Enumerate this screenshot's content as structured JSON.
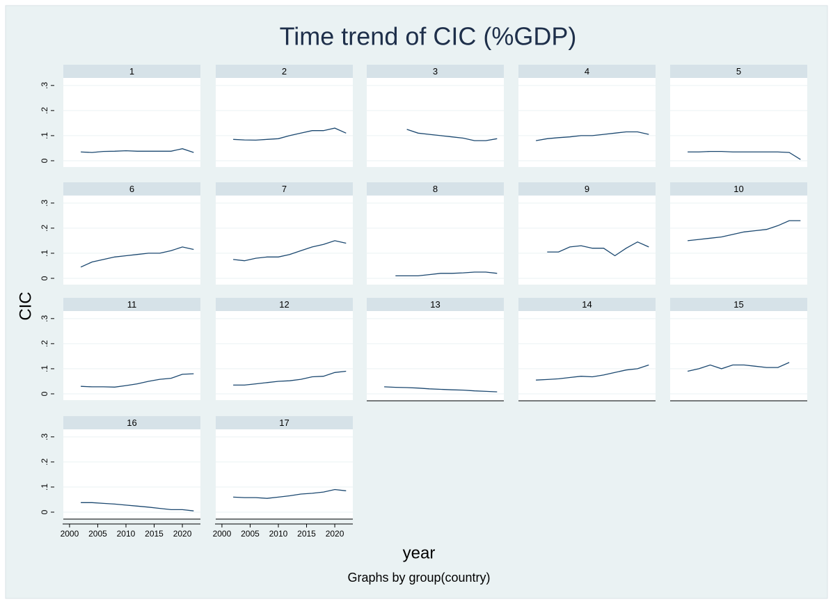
{
  "title": "Time trend of CIC (%GDP)",
  "ytitle": "CIC",
  "xtitle": "year",
  "note": "Graphs by group(country)",
  "chart_data": [
    {
      "type": "line",
      "title": "1",
      "color": "#1a476f",
      "x": [
        2002,
        2004,
        2006,
        2008,
        2010,
        2012,
        2014,
        2016,
        2018,
        2020,
        2022
      ],
      "values": [
        0.035,
        0.033,
        0.037,
        0.038,
        0.04,
        0.038,
        0.038,
        0.038,
        0.038,
        0.048,
        0.033
      ],
      "xlim": [
        1998.9,
        2023.2
      ],
      "ylim": [
        -0.025,
        0.33
      ],
      "xticks": [
        2000,
        2005,
        2010,
        2015,
        2020
      ],
      "yticks": [
        0,
        {
          "value": 0.1,
          "label": ".1"
        },
        {
          "value": 0.2,
          "label": ".2"
        },
        {
          "value": 0.3,
          "label": ".3"
        }
      ],
      "grid": true
    },
    {
      "type": "line",
      "title": "2",
      "color": "#1a476f",
      "x": [
        2002,
        2004,
        2006,
        2008,
        2010,
        2012,
        2014,
        2016,
        2018,
        2020,
        2022
      ],
      "values": [
        0.085,
        0.083,
        0.082,
        0.085,
        0.088,
        0.1,
        0.11,
        0.12,
        0.12,
        0.13,
        0.11
      ],
      "xlim": [
        1998.9,
        2023.2
      ],
      "ylim": [
        -0.025,
        0.33
      ],
      "xticks": [
        2000,
        2005,
        2010,
        2015,
        2020
      ],
      "yticks": [
        0,
        {
          "value": 0.1,
          "label": ".1"
        },
        {
          "value": 0.2,
          "label": ".2"
        },
        {
          "value": 0.3,
          "label": ".3"
        }
      ],
      "grid": true
    },
    {
      "type": "line",
      "title": "3",
      "color": "#1a476f",
      "x": [
        2002,
        2004,
        2006,
        2008,
        2010,
        2012,
        2014,
        2016,
        2018,
        2020,
        2022
      ],
      "values": [
        null,
        null,
        0.125,
        0.11,
        0.105,
        0.1,
        0.095,
        0.09,
        0.08,
        0.08,
        0.088
      ],
      "xlim": [
        1998.9,
        2023.2
      ],
      "ylim": [
        -0.025,
        0.33
      ],
      "xticks": [
        2000,
        2005,
        2010,
        2015,
        2020
      ],
      "yticks": [
        0,
        {
          "value": 0.1,
          "label": ".1"
        },
        {
          "value": 0.2,
          "label": ".2"
        },
        {
          "value": 0.3,
          "label": ".3"
        }
      ],
      "grid": true
    },
    {
      "type": "line",
      "title": "4",
      "color": "#1a476f",
      "x": [
        2002,
        2004,
        2006,
        2008,
        2010,
        2012,
        2014,
        2016,
        2018,
        2020,
        2022
      ],
      "values": [
        0.08,
        0.088,
        0.092,
        0.095,
        0.1,
        0.1,
        0.105,
        0.11,
        0.115,
        0.115,
        0.105
      ],
      "xlim": [
        1998.9,
        2023.2
      ],
      "ylim": [
        -0.025,
        0.33
      ],
      "xticks": [
        2000,
        2005,
        2010,
        2015,
        2020
      ],
      "yticks": [
        0,
        {
          "value": 0.1,
          "label": ".1"
        },
        {
          "value": 0.2,
          "label": ".2"
        },
        {
          "value": 0.3,
          "label": ".3"
        }
      ],
      "grid": true
    },
    {
      "type": "line",
      "title": "5",
      "color": "#1a476f",
      "x": [
        2002,
        2004,
        2006,
        2008,
        2010,
        2012,
        2014,
        2016,
        2018,
        2020,
        2022
      ],
      "values": [
        0.035,
        0.035,
        0.037,
        0.037,
        0.035,
        0.035,
        0.035,
        0.035,
        0.035,
        0.033,
        0.005
      ],
      "xlim": [
        1998.9,
        2023.2
      ],
      "ylim": [
        -0.025,
        0.33
      ],
      "xticks": [
        2000,
        2005,
        2010,
        2015,
        2020
      ],
      "yticks": [
        0,
        {
          "value": 0.1,
          "label": ".1"
        },
        {
          "value": 0.2,
          "label": ".2"
        },
        {
          "value": 0.3,
          "label": ".3"
        }
      ],
      "grid": true
    },
    {
      "type": "line",
      "title": "6",
      "color": "#1a476f",
      "x": [
        2002,
        2004,
        2006,
        2008,
        2010,
        2012,
        2014,
        2016,
        2018,
        2020,
        2022
      ],
      "values": [
        0.045,
        0.065,
        0.075,
        0.085,
        0.09,
        0.095,
        0.1,
        0.1,
        0.11,
        0.125,
        0.115
      ],
      "xlim": [
        1998.9,
        2023.2
      ],
      "ylim": [
        -0.025,
        0.33
      ],
      "xticks": [
        2000,
        2005,
        2010,
        2015,
        2020
      ],
      "yticks": [
        0,
        {
          "value": 0.1,
          "label": ".1"
        },
        {
          "value": 0.2,
          "label": ".2"
        },
        {
          "value": 0.3,
          "label": ".3"
        }
      ],
      "grid": true
    },
    {
      "type": "line",
      "title": "7",
      "color": "#1a476f",
      "x": [
        2002,
        2004,
        2006,
        2008,
        2010,
        2012,
        2014,
        2016,
        2018,
        2020,
        2022
      ],
      "values": [
        0.075,
        0.07,
        0.08,
        0.085,
        0.085,
        0.095,
        0.11,
        0.125,
        0.135,
        0.15,
        0.14
      ],
      "xlim": [
        1998.9,
        2023.2
      ],
      "ylim": [
        -0.025,
        0.33
      ],
      "xticks": [
        2000,
        2005,
        2010,
        2015,
        2020
      ],
      "yticks": [
        0,
        {
          "value": 0.1,
          "label": ".1"
        },
        {
          "value": 0.2,
          "label": ".2"
        },
        {
          "value": 0.3,
          "label": ".3"
        }
      ],
      "grid": true
    },
    {
      "type": "line",
      "title": "8",
      "color": "#1a476f",
      "x": [
        2002,
        2004,
        2006,
        2008,
        2010,
        2012,
        2014,
        2016,
        2018,
        2020,
        2022
      ],
      "values": [
        null,
        0.01,
        0.01,
        0.01,
        0.015,
        0.02,
        0.02,
        0.022,
        0.025,
        0.025,
        0.02
      ],
      "xlim": [
        1998.9,
        2023.2
      ],
      "ylim": [
        -0.025,
        0.33
      ],
      "xticks": [
        2000,
        2005,
        2010,
        2015,
        2020
      ],
      "yticks": [
        0,
        {
          "value": 0.1,
          "label": ".1"
        },
        {
          "value": 0.2,
          "label": ".2"
        },
        {
          "value": 0.3,
          "label": ".3"
        }
      ],
      "grid": true
    },
    {
      "type": "line",
      "title": "9",
      "color": "#1a476f",
      "x": [
        2002,
        2004,
        2006,
        2008,
        2010,
        2012,
        2014,
        2016,
        2018,
        2020,
        2022
      ],
      "values": [
        null,
        0.105,
        0.105,
        0.125,
        0.13,
        0.12,
        0.12,
        0.09,
        0.12,
        0.145,
        0.125
      ],
      "xlim": [
        1998.9,
        2023.2
      ],
      "ylim": [
        -0.025,
        0.33
      ],
      "xticks": [
        2000,
        2005,
        2010,
        2015,
        2020
      ],
      "yticks": [
        0,
        {
          "value": 0.1,
          "label": ".1"
        },
        {
          "value": 0.2,
          "label": ".2"
        },
        {
          "value": 0.3,
          "label": ".3"
        }
      ],
      "grid": true
    },
    {
      "type": "line",
      "title": "10",
      "color": "#1a476f",
      "x": [
        2002,
        2004,
        2006,
        2008,
        2010,
        2012,
        2014,
        2016,
        2018,
        2020,
        2022
      ],
      "values": [
        0.15,
        0.155,
        0.16,
        0.165,
        0.175,
        0.185,
        0.19,
        0.195,
        0.21,
        0.23,
        0.23
      ],
      "xlim": [
        1998.9,
        2023.2
      ],
      "ylim": [
        -0.025,
        0.33
      ],
      "xticks": [
        2000,
        2005,
        2010,
        2015,
        2020
      ],
      "yticks": [
        0,
        {
          "value": 0.1,
          "label": ".1"
        },
        {
          "value": 0.2,
          "label": ".2"
        },
        {
          "value": 0.3,
          "label": ".3"
        }
      ],
      "grid": true
    },
    {
      "type": "line",
      "title": "11",
      "color": "#1a476f",
      "x": [
        2002,
        2004,
        2006,
        2008,
        2010,
        2012,
        2014,
        2016,
        2018,
        2020,
        2022
      ],
      "values": [
        0.03,
        0.028,
        0.028,
        0.027,
        0.033,
        0.04,
        0.05,
        0.058,
        0.062,
        0.078,
        0.08
      ],
      "xlim": [
        1998.9,
        2023.2
      ],
      "ylim": [
        -0.025,
        0.33
      ],
      "xticks": [
        2000,
        2005,
        2010,
        2015,
        2020
      ],
      "yticks": [
        0,
        {
          "value": 0.1,
          "label": ".1"
        },
        {
          "value": 0.2,
          "label": ".2"
        },
        {
          "value": 0.3,
          "label": ".3"
        }
      ],
      "grid": true
    },
    {
      "type": "line",
      "title": "12",
      "color": "#1a476f",
      "x": [
        2002,
        2004,
        2006,
        2008,
        2010,
        2012,
        2014,
        2016,
        2018,
        2020,
        2022
      ],
      "values": [
        0.035,
        0.035,
        0.04,
        0.045,
        0.05,
        0.052,
        0.058,
        0.068,
        0.07,
        0.085,
        0.09
      ],
      "xlim": [
        1998.9,
        2023.2
      ],
      "ylim": [
        -0.025,
        0.33
      ],
      "xticks": [
        2000,
        2005,
        2010,
        2015,
        2020
      ],
      "yticks": [
        0,
        {
          "value": 0.1,
          "label": ".1"
        },
        {
          "value": 0.2,
          "label": ".2"
        },
        {
          "value": 0.3,
          "label": ".3"
        }
      ],
      "grid": true
    },
    {
      "type": "line",
      "title": "13",
      "color": "#1a476f",
      "x": [
        2002,
        2004,
        2006,
        2008,
        2010,
        2012,
        2014,
        2016,
        2018,
        2020,
        2022
      ],
      "values": [
        0.028,
        0.026,
        0.025,
        0.023,
        0.02,
        0.018,
        0.016,
        0.015,
        0.012,
        0.01,
        0.008
      ],
      "xlim": [
        1998.9,
        2023.2
      ],
      "ylim": [
        -0.025,
        0.33
      ],
      "xticks": [
        2000,
        2005,
        2010,
        2015,
        2020
      ],
      "yticks": [
        0,
        {
          "value": 0.1,
          "label": ".1"
        },
        {
          "value": 0.2,
          "label": ".2"
        },
        {
          "value": 0.3,
          "label": ".3"
        }
      ],
      "grid": true
    },
    {
      "type": "line",
      "title": "14",
      "color": "#1a476f",
      "x": [
        2002,
        2004,
        2006,
        2008,
        2010,
        2012,
        2014,
        2016,
        2018,
        2020,
        2022
      ],
      "values": [
        0.055,
        0.057,
        0.06,
        0.065,
        0.07,
        0.068,
        0.075,
        0.085,
        0.095,
        0.1,
        0.115
      ],
      "xlim": [
        1998.9,
        2023.2
      ],
      "ylim": [
        -0.025,
        0.33
      ],
      "xticks": [
        2000,
        2005,
        2010,
        2015,
        2020
      ],
      "yticks": [
        0,
        {
          "value": 0.1,
          "label": ".1"
        },
        {
          "value": 0.2,
          "label": ".2"
        },
        {
          "value": 0.3,
          "label": ".3"
        }
      ],
      "grid": true
    },
    {
      "type": "line",
      "title": "15",
      "color": "#1a476f",
      "x": [
        2002,
        2004,
        2006,
        2008,
        2010,
        2012,
        2014,
        2016,
        2018,
        2020,
        2022
      ],
      "values": [
        0.09,
        0.1,
        0.115,
        0.1,
        0.115,
        0.115,
        0.11,
        0.105,
        0.105,
        0.125,
        null
      ],
      "xlim": [
        1998.9,
        2023.2
      ],
      "ylim": [
        -0.025,
        0.33
      ],
      "xticks": [
        2000,
        2005,
        2010,
        2015,
        2020
      ],
      "yticks": [
        0,
        {
          "value": 0.1,
          "label": ".1"
        },
        {
          "value": 0.2,
          "label": ".2"
        },
        {
          "value": 0.3,
          "label": ".3"
        }
      ],
      "grid": true
    },
    {
      "type": "line",
      "title": "16",
      "color": "#1a476f",
      "x": [
        2002,
        2004,
        2006,
        2008,
        2010,
        2012,
        2014,
        2016,
        2018,
        2020,
        2022
      ],
      "values": [
        0.038,
        0.038,
        0.035,
        0.032,
        0.028,
        0.024,
        0.02,
        0.015,
        0.01,
        0.01,
        0.005
      ],
      "xlim": [
        1998.9,
        2023.2
      ],
      "ylim": [
        -0.025,
        0.33
      ],
      "xticks": [
        2000,
        2005,
        2010,
        2015,
        2020
      ],
      "yticks": [
        0,
        {
          "value": 0.1,
          "label": ".1"
        },
        {
          "value": 0.2,
          "label": ".2"
        },
        {
          "value": 0.3,
          "label": ".3"
        }
      ],
      "grid": true
    },
    {
      "type": "line",
      "title": "17",
      "color": "#1a476f",
      "x": [
        2002,
        2004,
        2006,
        2008,
        2010,
        2012,
        2014,
        2016,
        2018,
        2020,
        2022
      ],
      "values": [
        0.06,
        0.058,
        0.058,
        0.055,
        0.06,
        0.065,
        0.072,
        0.075,
        0.08,
        0.09,
        0.085
      ],
      "xlim": [
        1998.9,
        2023.2
      ],
      "ylim": [
        -0.025,
        0.33
      ],
      "xticks": [
        2000,
        2005,
        2010,
        2015,
        2020
      ],
      "yticks": [
        0,
        {
          "value": 0.1,
          "label": ".1"
        },
        {
          "value": 0.2,
          "label": ".2"
        },
        {
          "value": 0.3,
          "label": ".3"
        }
      ],
      "grid": true
    }
  ]
}
